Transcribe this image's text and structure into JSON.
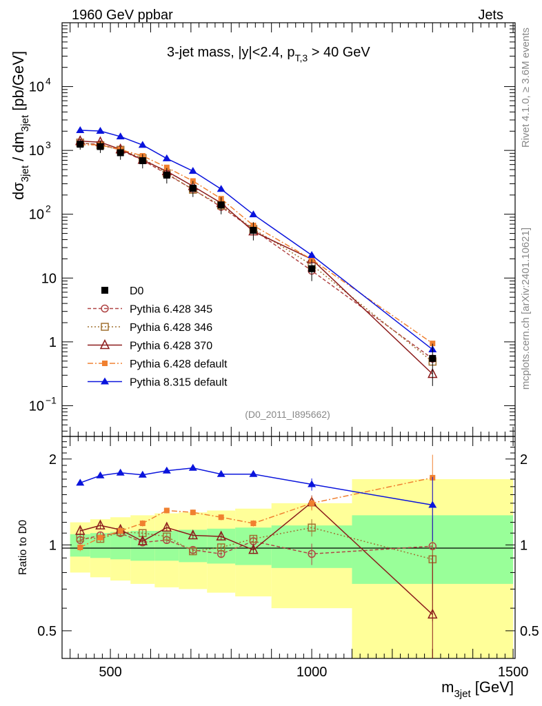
{
  "header": {
    "energy_label": "1960 GeV ppbar",
    "process_label": "Jets",
    "title_main": "3-jet mass, |y|<2.4, p",
    "title_sub": "T,3",
    "title_tail": " > 40 GeV",
    "analysis_id": "(D0_2011_I895662)",
    "side_rivet": "Rivet 4.1.0, ≥ 3.6M events",
    "side_mcplots": "mcplots.cern.ch [arXiv:2401.10621]"
  },
  "axes": {
    "ylabel_main": "dσ",
    "ylabel_main_sub": "3jet",
    "ylabel_main_mid": " / dm",
    "ylabel_main_sub2": "3jet",
    "ylabel_main_unit": " [pb/GeV]",
    "ylabel_ratio": "Ratio to D0",
    "xlabel": "m",
    "xlabel_sub": "3jet",
    "xlabel_unit": " [GeV]",
    "x_ticks": [
      "500",
      "1000",
      "1500"
    ],
    "main_y_ticks": [
      {
        "label": "10",
        "exp": "4"
      },
      {
        "label": "10",
        "exp": "3"
      },
      {
        "label": "10",
        "exp": "2"
      },
      {
        "label": "10",
        "exp": ""
      },
      {
        "label": "1",
        "exp": ""
      },
      {
        "label": "10",
        "exp": "−1"
      }
    ],
    "ratio_y_ticks": [
      "2",
      "1",
      "0.5"
    ]
  },
  "legend": [
    {
      "name": "D0"
    },
    {
      "name": "Pythia 6.428 345"
    },
    {
      "name": "Pythia 6.428 346"
    },
    {
      "name": "Pythia 6.428 370"
    },
    {
      "name": "Pythia 6.428 default"
    },
    {
      "name": "Pythia 8.315 default"
    }
  ],
  "chart_data": {
    "type": "line",
    "title": "3-jet mass, |y|<2.4, pT,3 > 40 GeV",
    "xlabel": "m3jet [GeV]",
    "ylabel": "dσ 3jet / dm3jet [pb/GeV]",
    "xlim": [
      380,
      1505
    ],
    "ylim": [
      0.033,
      100000
    ],
    "yscale": "log",
    "ratio_ylim": [
      0.4,
      2.4
    ],
    "bin_edges": [
      400,
      450,
      500,
      550,
      610,
      670,
      740,
      810,
      900,
      1100,
      1500
    ],
    "x": [
      425,
      475,
      525,
      580,
      640,
      705,
      775,
      855,
      1000,
      1300
    ],
    "data": {
      "name": "D0",
      "values": [
        1250,
        1150,
        920,
        690,
        410,
        255,
        140,
        56,
        14,
        0.55
      ],
      "band_stat": [
        0.09,
        0.1,
        0.11,
        0.12,
        0.12,
        0.13,
        0.14,
        0.15,
        0.17,
        0.27
      ],
      "band_total": [
        0.2,
        0.23,
        0.25,
        0.27,
        0.29,
        0.3,
        0.32,
        0.34,
        0.4,
        0.7
      ]
    },
    "series": [
      {
        "name": "Pythia 6.428 345",
        "color": "#b04545",
        "marker": "open-circle",
        "dash": "5,3",
        "ratio": [
          1.04,
          1.08,
          1.1,
          1.02,
          1.04,
          0.96,
          0.93,
          1.03,
          0.93,
          0.99
        ]
      },
      {
        "name": "Pythia 6.428 346",
        "color": "#a07030",
        "marker": "open-square",
        "dash": "2,3",
        "ratio": [
          1.06,
          1.05,
          1.11,
          1.1,
          1.07,
          0.95,
          0.98,
          1.05,
          1.15,
          0.89
        ]
      },
      {
        "name": "Pythia 6.428 370",
        "color": "#8b1a1a",
        "marker": "open-triangle",
        "dash": "",
        "ratio": [
          1.12,
          1.17,
          1.13,
          1.03,
          1.15,
          1.08,
          1.07,
          0.96,
          1.41,
          0.57
        ]
      },
      {
        "name": "Pythia 6.428 default",
        "color": "#f08030",
        "marker": "filled-square",
        "dash": "8,3,2,3",
        "ratio": [
          0.98,
          1.06,
          1.12,
          1.19,
          1.32,
          1.3,
          1.25,
          1.19,
          1.4,
          1.72
        ]
      },
      {
        "name": "Pythia 8.315 default",
        "color": "#0a14dc",
        "marker": "filled-triangle",
        "dash": "",
        "ratio": [
          1.65,
          1.75,
          1.79,
          1.76,
          1.82,
          1.86,
          1.77,
          1.77,
          1.63,
          1.38
        ]
      }
    ]
  }
}
